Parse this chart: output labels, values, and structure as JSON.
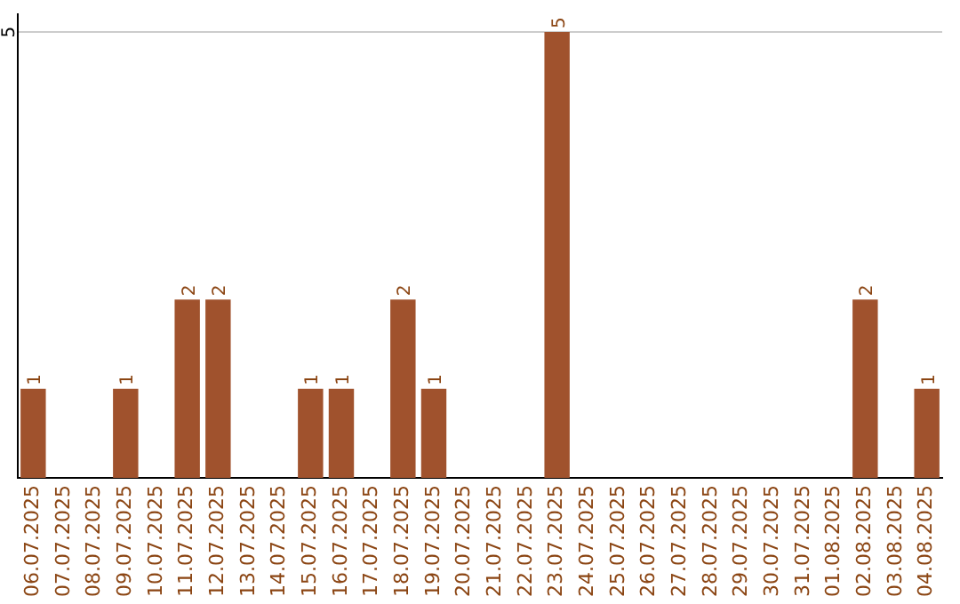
{
  "chart_data": {
    "type": "bar",
    "categories": [
      "06.07.2025",
      "07.07.2025",
      "08.07.2025",
      "09.07.2025",
      "10.07.2025",
      "11.07.2025",
      "12.07.2025",
      "13.07.2025",
      "14.07.2025",
      "15.07.2025",
      "16.07.2025",
      "17.07.2025",
      "18.07.2025",
      "19.07.2025",
      "20.07.2025",
      "21.07.2025",
      "22.07.2025",
      "23.07.2025",
      "24.07.2025",
      "25.07.2025",
      "26.07.2025",
      "27.07.2025",
      "28.07.2025",
      "29.07.2025",
      "30.07.2025",
      "31.07.2025",
      "01.08.2025",
      "02.08.2025",
      "03.08.2025",
      "04.08.2025"
    ],
    "values": [
      1,
      0,
      0,
      1,
      0,
      2,
      2,
      0,
      0,
      1,
      1,
      0,
      2,
      1,
      0,
      0,
      0,
      5,
      0,
      0,
      0,
      0,
      0,
      0,
      0,
      0,
      0,
      2,
      0,
      1
    ],
    "value_labels": [
      "1",
      null,
      null,
      "1",
      null,
      "2",
      "2",
      null,
      null,
      "1",
      "1",
      null,
      "2",
      "1",
      null,
      null,
      null,
      "5",
      null,
      null,
      null,
      null,
      null,
      null,
      null,
      null,
      null,
      "2",
      null,
      "1"
    ],
    "color": "#a0522d",
    "ylim": [
      0,
      5.2
    ],
    "yticks": [
      5
    ],
    "grid": "y",
    "legend": false
  }
}
